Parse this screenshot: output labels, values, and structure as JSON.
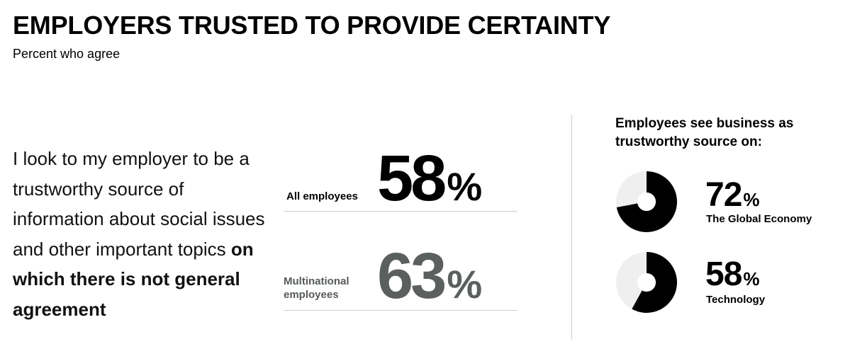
{
  "title": "EMPLOYERS TRUSTED TO PROVIDE CERTAINTY",
  "subtitle": "Percent who agree",
  "statement": {
    "plain": "I look to my employer to be a trustworthy source of information about social issues and other important topics ",
    "bold": "on which there is not general agreement"
  },
  "stats": [
    {
      "label": "All employees",
      "value": "58",
      "unit": "%",
      "color": "#000000"
    },
    {
      "label": "Multinational employees",
      "value": "63",
      "unit": "%",
      "color": "#5b605f"
    }
  ],
  "right_title": "Employees see business as trustworthy source on:",
  "chart_data": {
    "type": "pie",
    "title": "Employees see business as trustworthy source on:",
    "series": [
      {
        "name": "The Global Economy",
        "value": 72,
        "unit": "%"
      },
      {
        "name": "Technology",
        "value": 58,
        "unit": "%"
      }
    ],
    "colors": {
      "filled": "#000000",
      "remainder": "#efefef"
    }
  }
}
